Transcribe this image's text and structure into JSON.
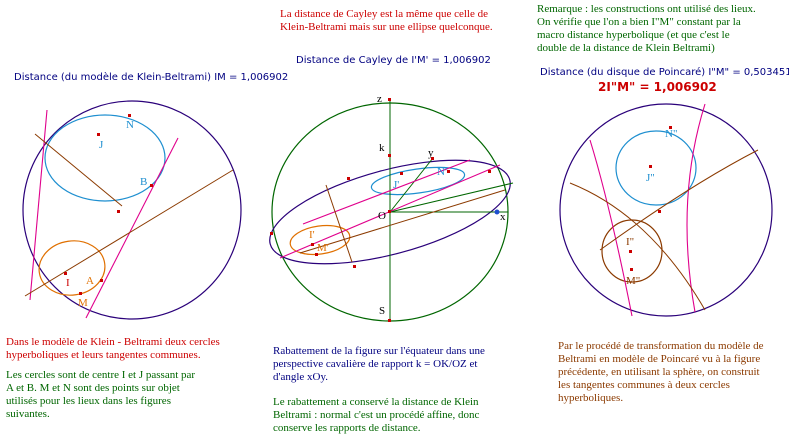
{
  "top": {
    "cayley_note": "La distance de Cayley est la même que celle de\nKlein-Beltrami mais sur une ellipse quelconque.",
    "remark": "Remarque : les constructions ont utilisé des lieux.\nOn vérifie que l'on a bien I\"M\" constant par la\nmacro distance hyperbolique (et que c'est le\ndouble de la distance de Klein Beltrami)"
  },
  "measures": {
    "klein": "Distance (du modèle de Klein-Beltrami) IM = 1,006902",
    "cayley": "Distance de Cayley de I'M' = 1,006902",
    "poincare": "Distance (du disque de Poincaré) I\"M\" = 0,503451",
    "doubled": "2I\"M\" =  1,006902"
  },
  "captions": {
    "klein_1": "Dans le modèle de Klein - Beltrami deux cercles\nhyperboliques et leurs tangentes communes.",
    "klein_2": "Les cercles sont de centre I et J passant par\nA et B. M et N sont des points sur objet\nutilisés pour les lieux dans les figures\nsuivantes.",
    "middle_1": "Rabattement de la figure sur l'équateur dans une\nperspective cavalière de rapport k = OK/OZ et\nd'angle xOy.",
    "middle_2": "Le rabattement a conservé la distance de Klein\nBeltrami : normal c'est un procédé affine, donc\nconserve les rapports de distance.",
    "poincare": "Par le procédé de transformation du modèle de\nBeltrami en modèle de Poincaré vu à la figure\nprécédente, en utilisant la sphère, on construit\nles tangentes communes à deux cercles\nhyperboliques."
  },
  "labels": {
    "klein": {
      "N": "N",
      "J": "J",
      "B": "B",
      "I": "I",
      "A": "A",
      "M": "M"
    },
    "middle": {
      "z": "z",
      "k": "k",
      "y": "y",
      "N": "N'",
      "J": "J'",
      "O": "O",
      "x": "x",
      "I": "I'",
      "M": "M'",
      "S": "S"
    },
    "poincare": {
      "N": "N\"",
      "J": "J\"",
      "I": "I\"",
      "M": "M\""
    }
  },
  "colors": {
    "red": "#cc0000",
    "green": "#006600",
    "navy": "#000080",
    "brown": "#8b3a00",
    "circle": "#1e8fd0",
    "magenta": "#e0008c",
    "orange": "#e07000",
    "ellipse": "#2a007a"
  }
}
